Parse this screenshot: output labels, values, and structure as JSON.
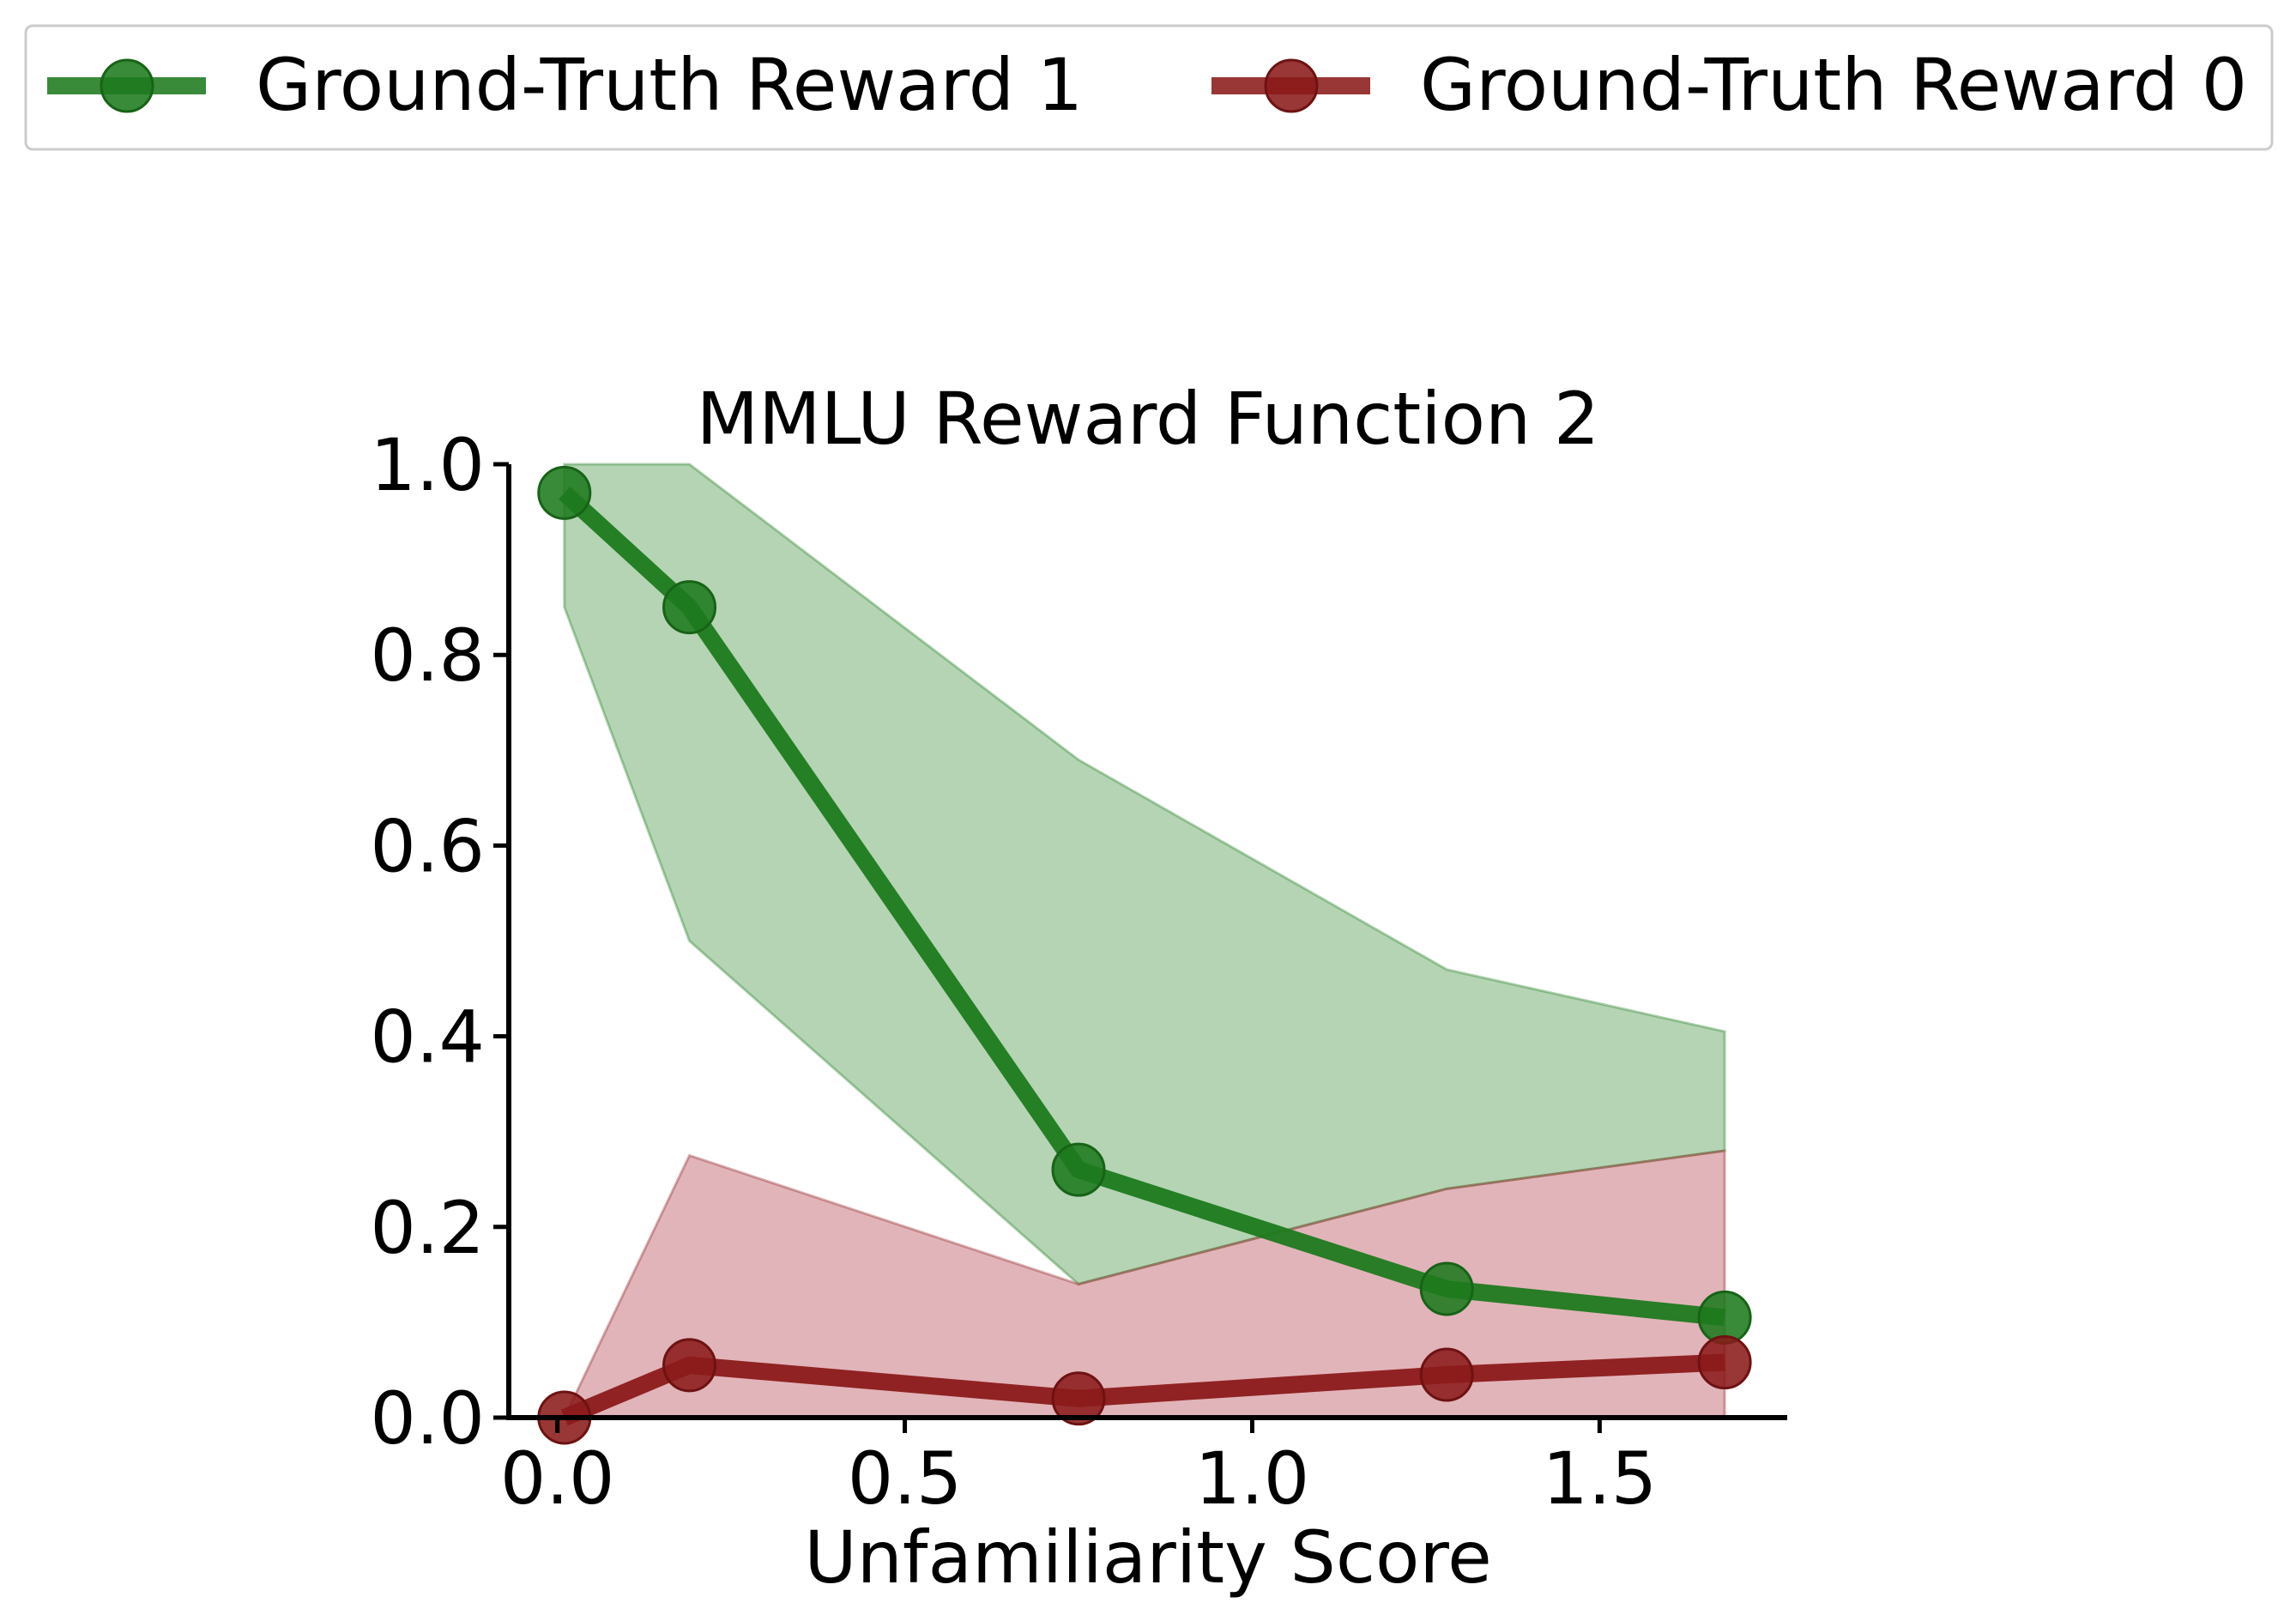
{
  "chart_data": {
    "type": "line",
    "title": "MMLU Reward Function 2",
    "xlabel": "Unfamiliarity Score",
    "ylabel": "",
    "xlim": [
      -0.07,
      1.77
    ],
    "ylim": [
      0,
      1
    ],
    "xticks": [
      0.0,
      0.5,
      1.0,
      1.5
    ],
    "xtick_labels": [
      "0.0",
      "0.5",
      "1.0",
      "1.5"
    ],
    "yticks": [
      0.0,
      0.2,
      0.4,
      0.6,
      0.8,
      1.0
    ],
    "ytick_labels": [
      "0.0",
      "0.2",
      "0.4",
      "0.6",
      "0.8",
      "1.0"
    ],
    "grid": false,
    "legend_position": "top",
    "series": [
      {
        "name": "Ground-Truth Reward 1",
        "color": "#1e7a1e",
        "x": [
          0.01,
          0.19,
          0.75,
          1.28,
          1.68
        ],
        "y": [
          0.97,
          0.85,
          0.26,
          0.135,
          0.105
        ],
        "band_lower": [
          0.85,
          0.5,
          0.14,
          0.24,
          0.28
        ],
        "band_upper": [
          1.0,
          1.0,
          0.69,
          0.47,
          0.405
        ],
        "band_color": "#b2d2b2"
      },
      {
        "name": "Ground-Truth Reward 0",
        "color": "#8b1a1a",
        "x": [
          0.01,
          0.19,
          0.75,
          1.28,
          1.68
        ],
        "y": [
          0.0,
          0.055,
          0.02,
          0.045,
          0.058
        ],
        "band_lower": [
          0.0,
          0.0,
          0.0,
          0.0,
          0.0
        ],
        "band_upper": [
          0.0,
          0.275,
          0.14,
          0.24,
          0.28
        ],
        "band_color": "#dcb0b3"
      }
    ]
  }
}
